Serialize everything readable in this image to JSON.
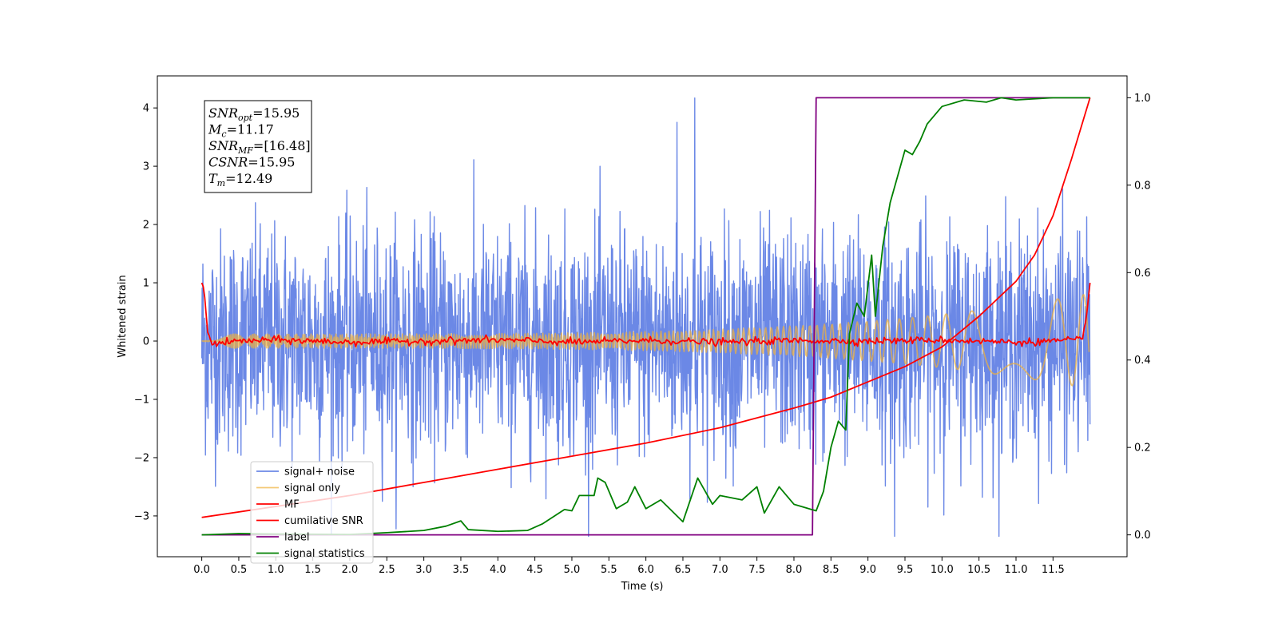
{
  "chart_data": {
    "type": "line",
    "xlabel": "Time (s)",
    "ylabel": "Whitened strain",
    "ylabel_right": "",
    "xlim": [
      -0.6,
      12.5
    ],
    "ylim": [
      -3.7,
      4.55
    ],
    "ylim_right": [
      -0.05,
      1.05
    ],
    "x_ticks": [
      0.0,
      0.5,
      1.0,
      1.5,
      2.0,
      2.5,
      3.0,
      3.5,
      4.0,
      4.5,
      5.0,
      5.5,
      6.0,
      6.5,
      7.0,
      7.5,
      8.0,
      8.5,
      9.0,
      9.5,
      10.0,
      10.5,
      11.0,
      11.5
    ],
    "x_tick_labels": [
      "0.0",
      "0.5",
      "1.0",
      "1.5",
      "2.0",
      "2.5",
      "3.0",
      "3.5",
      "4.0",
      "4.5",
      "5.0",
      "5.5",
      "6.0",
      "6.5",
      "7.0",
      "7.5",
      "8.0",
      "8.5",
      "9.0",
      "9.5",
      "10.0",
      "10.5",
      "11.0",
      "11.5"
    ],
    "y_ticks": [
      -3,
      -2,
      -1,
      0,
      1,
      2,
      3,
      4
    ],
    "y_tick_labels": [
      "−3",
      "−2",
      "−1",
      "0",
      "1",
      "2",
      "3",
      "4"
    ],
    "y_ticks_right": [
      0.0,
      0.2,
      0.4,
      0.6,
      0.8,
      1.0
    ],
    "y_tick_labels_right": [
      "0.0",
      "0.2",
      "0.4",
      "0.6",
      "0.8",
      "1.0"
    ],
    "grid": false,
    "legend_position": "lower-left",
    "series": [
      {
        "name": "signal+ noise",
        "axis": "left",
        "color": "#6b88e6",
        "style": "noise",
        "x_range": [
          0.0,
          12.0
        ],
        "noise_std": 0.95,
        "peak_max": 4.17,
        "peak_min": -3.35
      },
      {
        "name": "signal only",
        "axis": "left",
        "color": "#f0b23c",
        "style": "chirp",
        "x_range": [
          0.0,
          12.0
        ],
        "amplitude_start": 0.12,
        "amplitude_end": 0.82
      },
      {
        "name": "MF",
        "axis": "left",
        "color": "#ff0000",
        "style": "mf",
        "points": [
          [
            0.0,
            1.0
          ],
          [
            0.03,
            0.9
          ],
          [
            0.08,
            0.15
          ],
          [
            0.15,
            -0.05
          ],
          [
            0.5,
            0.0
          ],
          [
            1.0,
            0.02
          ],
          [
            2.0,
            -0.02
          ],
          [
            3.0,
            0.0
          ],
          [
            4.0,
            0.02
          ],
          [
            5.0,
            -0.02
          ],
          [
            6.0,
            0.01
          ],
          [
            7.0,
            -0.02
          ],
          [
            8.0,
            0.01
          ],
          [
            9.0,
            0.0
          ],
          [
            10.0,
            0.02
          ],
          [
            11.0,
            -0.02
          ],
          [
            11.9,
            0.02
          ],
          [
            11.95,
            0.4
          ],
          [
            12.0,
            1.0
          ]
        ]
      },
      {
        "name": "cumilative SNR",
        "axis": "right",
        "color": "#ff0000",
        "style": "line",
        "points": [
          [
            0.0,
            0.04
          ],
          [
            1.0,
            0.065
          ],
          [
            2.0,
            0.09
          ],
          [
            3.0,
            0.12
          ],
          [
            4.0,
            0.15
          ],
          [
            5.0,
            0.18
          ],
          [
            6.0,
            0.21
          ],
          [
            7.0,
            0.245
          ],
          [
            8.0,
            0.29
          ],
          [
            8.5,
            0.315
          ],
          [
            9.0,
            0.35
          ],
          [
            9.5,
            0.385
          ],
          [
            10.0,
            0.43
          ],
          [
            10.5,
            0.5
          ],
          [
            11.0,
            0.58
          ],
          [
            11.25,
            0.64
          ],
          [
            11.5,
            0.73
          ],
          [
            11.75,
            0.86
          ],
          [
            12.0,
            1.0
          ]
        ]
      },
      {
        "name": "label",
        "axis": "right",
        "color": "#800080",
        "style": "line",
        "points": [
          [
            0.0,
            0.0
          ],
          [
            8.25,
            0.0
          ],
          [
            8.3,
            1.0
          ],
          [
            12.0,
            1.0
          ]
        ]
      },
      {
        "name": "signal statistics",
        "axis": "right",
        "color": "#008000",
        "style": "line",
        "points": [
          [
            0.0,
            0.0
          ],
          [
            0.5,
            0.003
          ],
          [
            1.0,
            0.002
          ],
          [
            2.0,
            0.001
          ],
          [
            2.5,
            0.005
          ],
          [
            3.0,
            0.01
          ],
          [
            3.3,
            0.02
          ],
          [
            3.5,
            0.032
          ],
          [
            3.6,
            0.012
          ],
          [
            4.0,
            0.008
          ],
          [
            4.4,
            0.01
          ],
          [
            4.6,
            0.025
          ],
          [
            4.9,
            0.058
          ],
          [
            5.0,
            0.055
          ],
          [
            5.1,
            0.09
          ],
          [
            5.3,
            0.09
          ],
          [
            5.35,
            0.13
          ],
          [
            5.45,
            0.12
          ],
          [
            5.6,
            0.06
          ],
          [
            5.75,
            0.075
          ],
          [
            5.85,
            0.11
          ],
          [
            6.0,
            0.06
          ],
          [
            6.2,
            0.08
          ],
          [
            6.5,
            0.03
          ],
          [
            6.7,
            0.13
          ],
          [
            6.9,
            0.07
          ],
          [
            7.0,
            0.09
          ],
          [
            7.3,
            0.08
          ],
          [
            7.5,
            0.11
          ],
          [
            7.6,
            0.05
          ],
          [
            7.8,
            0.11
          ],
          [
            8.0,
            0.07
          ],
          [
            8.3,
            0.055
          ],
          [
            8.4,
            0.1
          ],
          [
            8.5,
            0.2
          ],
          [
            8.6,
            0.26
          ],
          [
            8.7,
            0.24
          ],
          [
            8.75,
            0.46
          ],
          [
            8.85,
            0.53
          ],
          [
            8.95,
            0.5
          ],
          [
            9.05,
            0.64
          ],
          [
            9.1,
            0.5
          ],
          [
            9.2,
            0.66
          ],
          [
            9.3,
            0.76
          ],
          [
            9.4,
            0.82
          ],
          [
            9.5,
            0.88
          ],
          [
            9.6,
            0.87
          ],
          [
            9.7,
            0.9
          ],
          [
            9.8,
            0.94
          ],
          [
            10.0,
            0.98
          ],
          [
            10.3,
            0.995
          ],
          [
            10.6,
            0.99
          ],
          [
            10.8,
            1.0
          ],
          [
            11.0,
            0.995
          ],
          [
            11.5,
            1.0
          ],
          [
            12.0,
            1.0
          ]
        ]
      }
    ],
    "annotations": [
      {
        "base": "SNR",
        "sub": "opt",
        "rest": "=15.95"
      },
      {
        "base": "M",
        "sub": "c",
        "rest": "=11.17"
      },
      {
        "base": "SNR",
        "sub": "MF",
        "rest": "=[16.48]"
      },
      {
        "base": "CSNR",
        "sub": "",
        "rest": "=15.95"
      },
      {
        "base": "T",
        "sub": "m",
        "rest": "=12.49"
      }
    ]
  }
}
